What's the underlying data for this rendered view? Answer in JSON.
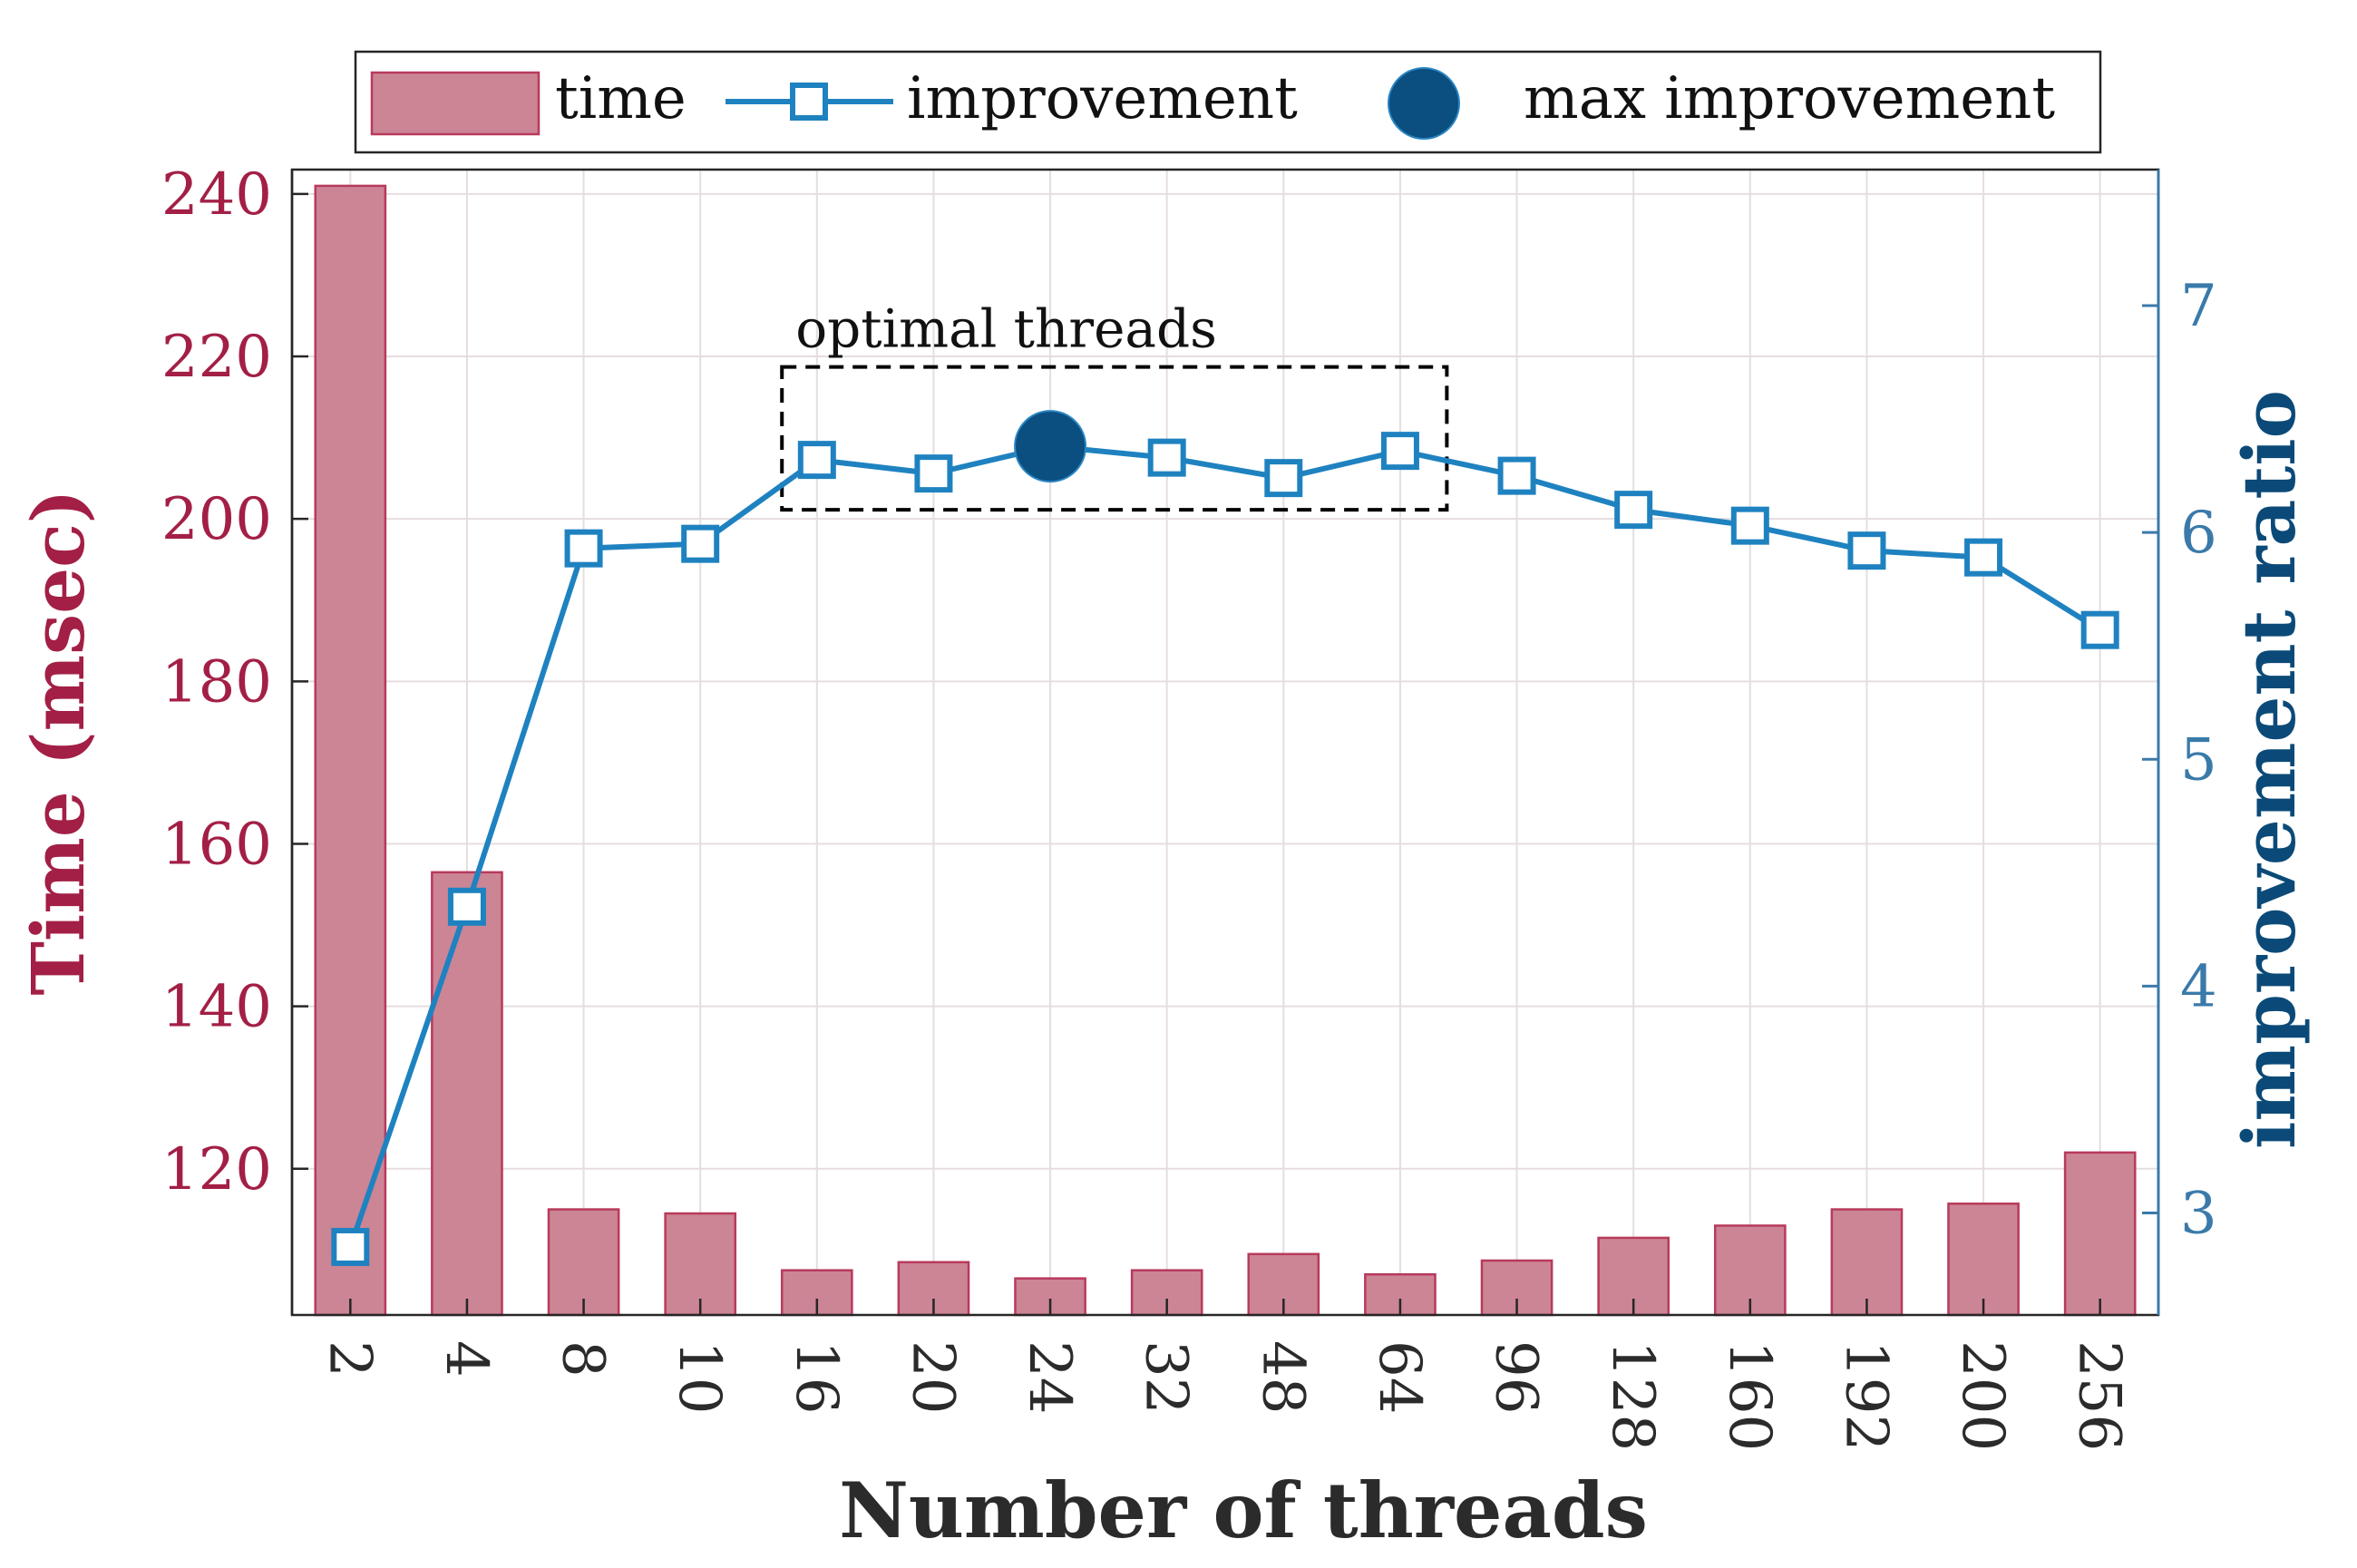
{
  "chart_data": {
    "type": "bar",
    "categories": [
      "2",
      "4",
      "8",
      "10",
      "16",
      "20",
      "24",
      "32",
      "48",
      "64",
      "96",
      "128",
      "160",
      "192",
      "200",
      "256"
    ],
    "xlabel": "Number of threads",
    "series": [
      {
        "name": "time",
        "kind": "bar",
        "axis": "left",
        "values": [
          241,
          156.5,
          115,
          114.5,
          107.5,
          108.5,
          106.5,
          107.5,
          109.5,
          107,
          108.7,
          111.5,
          113,
          115,
          115.7,
          122
        ]
      },
      {
        "name": "improvement",
        "kind": "line",
        "axis": "right",
        "values": [
          2.85,
          4.35,
          5.93,
          5.95,
          6.32,
          6.26,
          6.38,
          6.33,
          6.24,
          6.36,
          6.25,
          6.1,
          6.03,
          5.92,
          5.89,
          5.57
        ]
      }
    ],
    "max_improvement": {
      "name": "max improvement",
      "category": "24",
      "value": 6.38
    },
    "annotation": {
      "label": "optimal threads",
      "from": "16",
      "to": "64"
    },
    "left_axis": {
      "label": "Time (msec)",
      "min": 102,
      "max": 243,
      "ticks": [
        120,
        140,
        160,
        180,
        200,
        220,
        240
      ]
    },
    "right_axis": {
      "label": "improvement ratio",
      "min": 2.55,
      "max": 7.6,
      "ticks": [
        3,
        4,
        5,
        6,
        7
      ]
    },
    "grid": true,
    "legend": "top-center",
    "colors": {
      "bar_fill": "#cc8595",
      "bar_edge": "#b83a5c",
      "left_axis": "#a31f45",
      "line": "#1f82c0",
      "marker_max": "#0a4f80",
      "right_axis": "#3a7aaa",
      "right_label": "#0b4a78",
      "grid": "#e6dde0",
      "text": "#2b2b2b"
    }
  }
}
